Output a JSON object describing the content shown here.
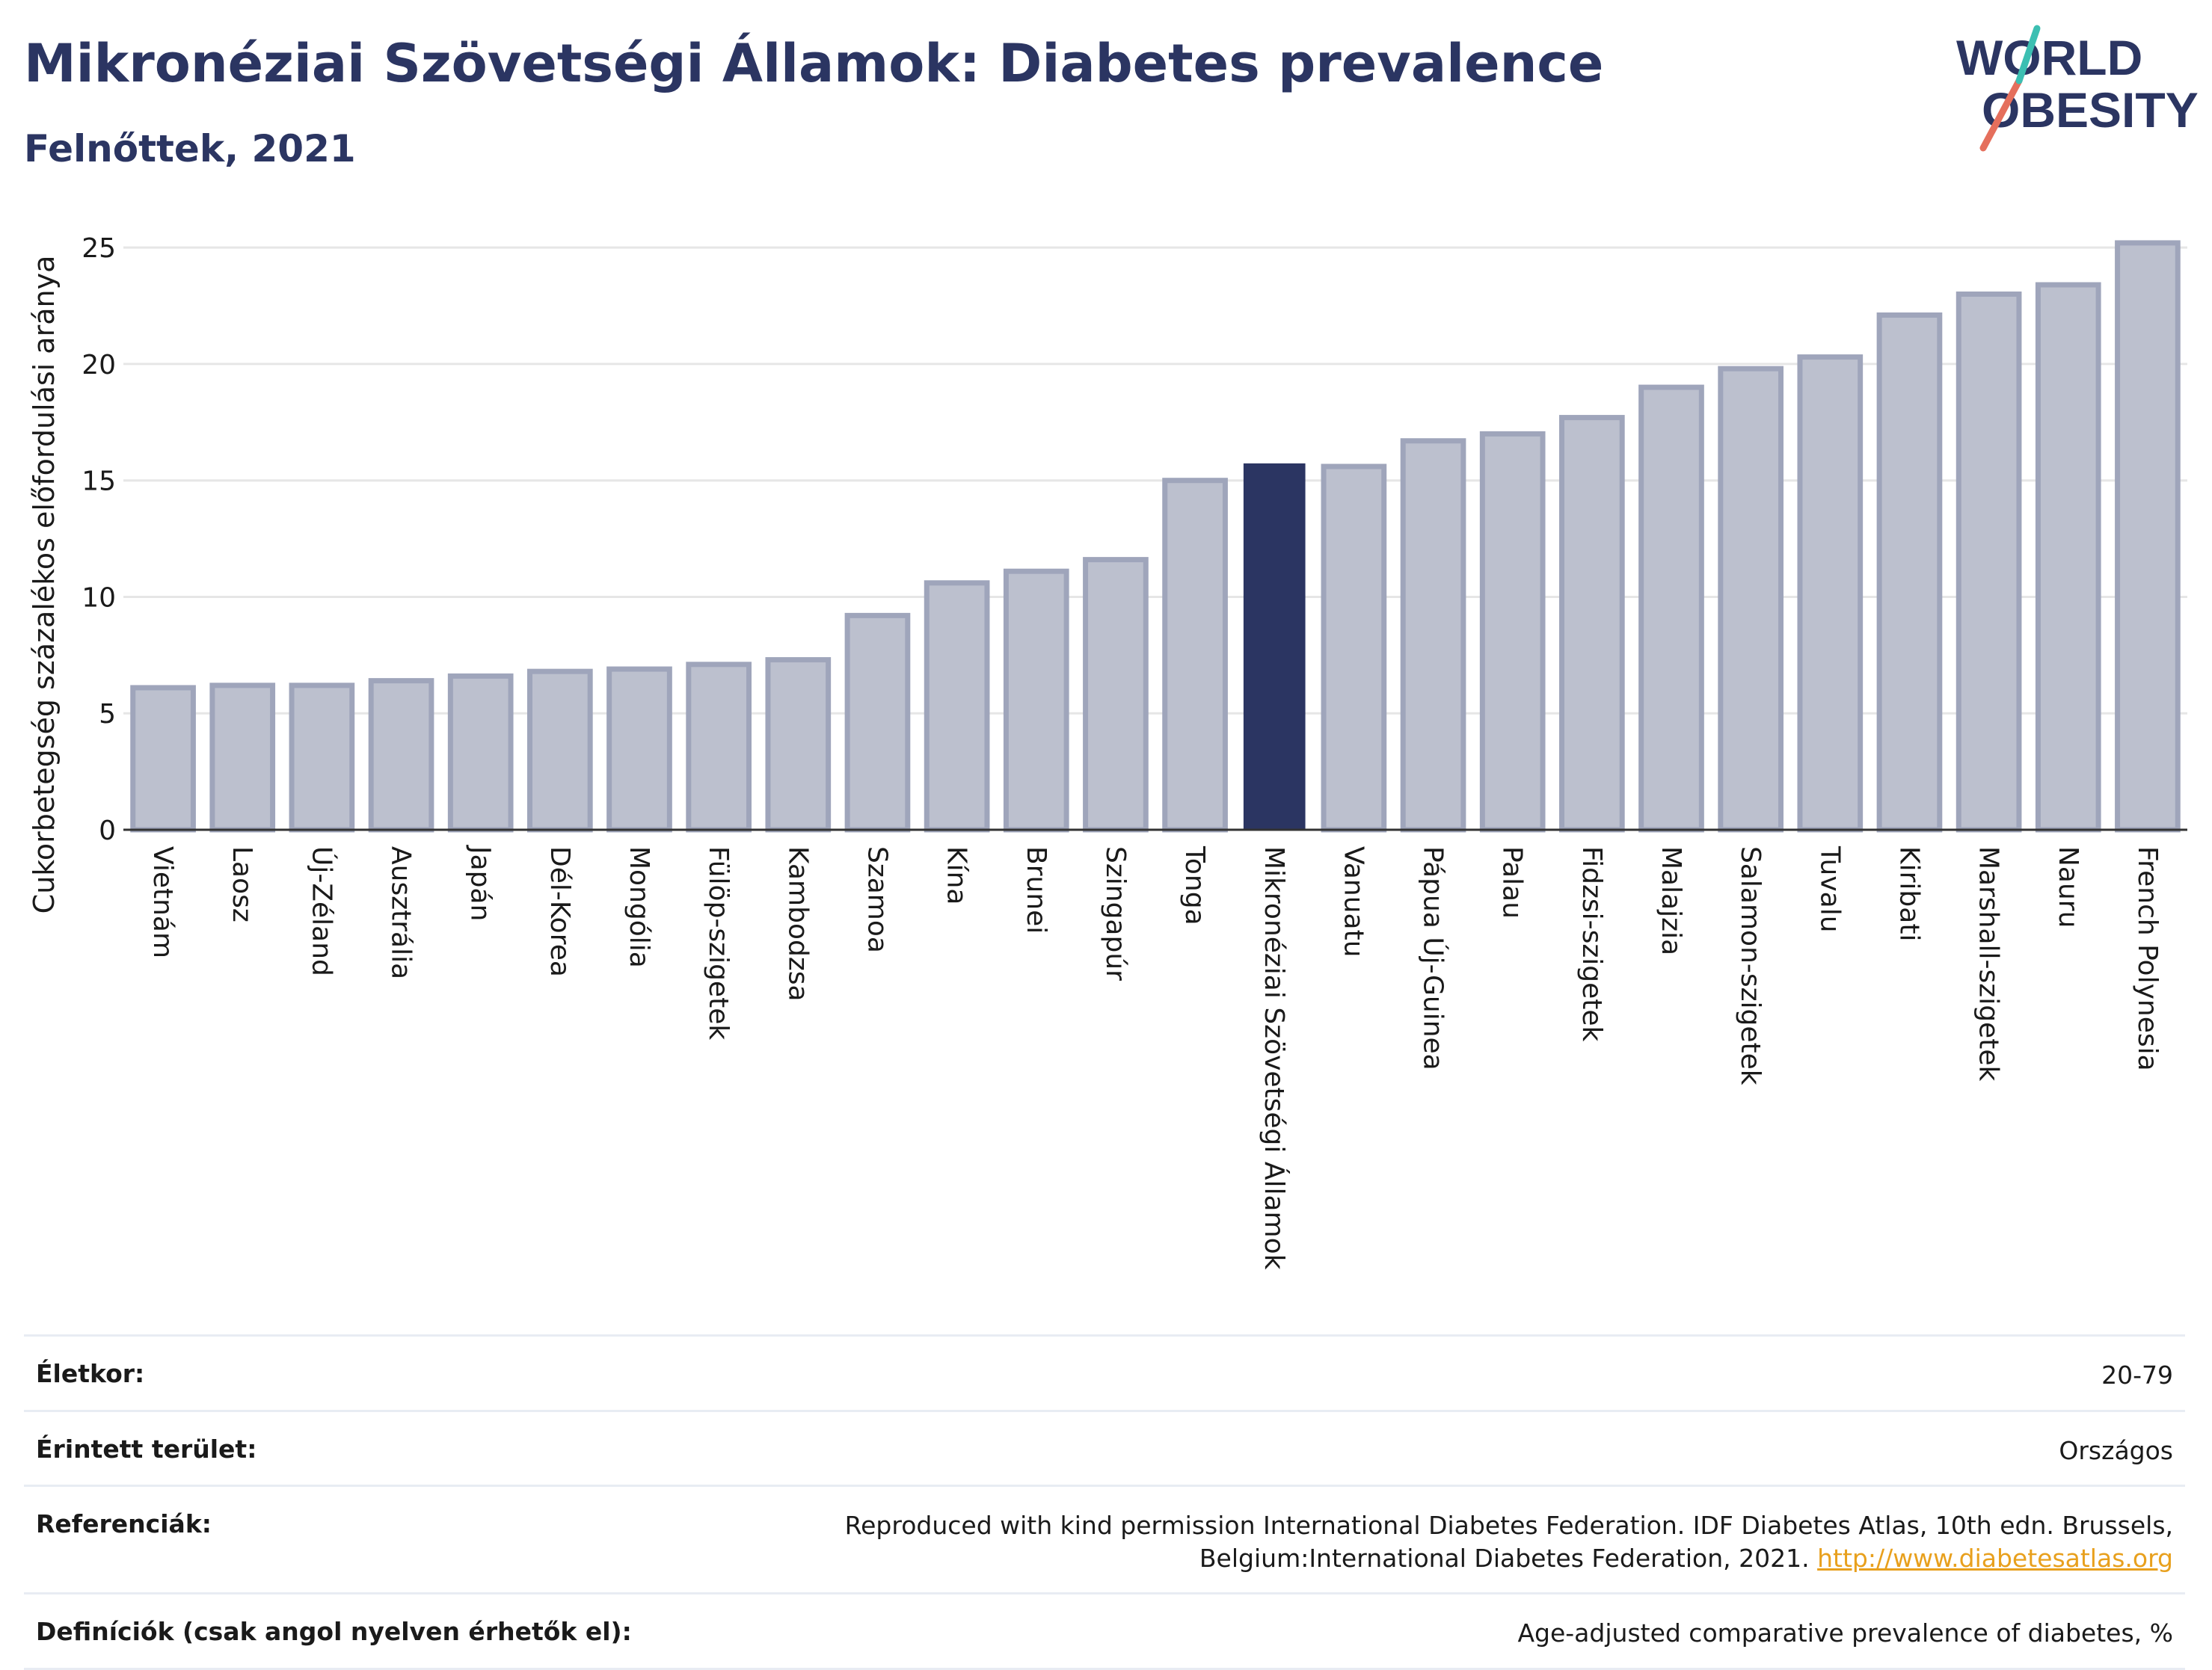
{
  "header": {
    "title": "Mikronéziai Szövetségi Államok: Diabetes prevalence",
    "subtitle": "Felnőttek, 2021"
  },
  "logo": {
    "line1": "WORLD",
    "line2": "OBESITY"
  },
  "chart_data": {
    "type": "bar",
    "ylabel": "Cukorbetegség százalékos előfordulási aránya",
    "ylim": [
      0,
      26
    ],
    "yticks": [
      0,
      5,
      10,
      15,
      20,
      25
    ],
    "grid": true,
    "highlight_category": "Mikronéziai Szövetségi Államok",
    "colors": {
      "bar": "#bcc0ce",
      "bar_border": "#9fa5bb",
      "highlight": "#2b3562",
      "grid": "#e6e6e6",
      "axis": "#333333"
    },
    "categories": [
      "Vietnám",
      "Laosz",
      "Új-Zéland",
      "Ausztrália",
      "Japán",
      "Dél-Korea",
      "Mongólia",
      "Fülöp-szigetek",
      "Kambodzsa",
      "Szamoa",
      "Kína",
      "Brunei",
      "Szingapúr",
      "Tonga",
      "Mikronéziai Szövetségi Államok",
      "Vanuatu",
      "Pápua Új-Guinea",
      "Palau",
      "Fidzsi-szigetek",
      "Malajzia",
      "Salamon-szigetek",
      "Tuvalu",
      "Kiribati",
      "Marshall-szigetek",
      "Nauru",
      "French Polynesia"
    ],
    "values": [
      6.1,
      6.2,
      6.2,
      6.4,
      6.6,
      6.8,
      6.9,
      7.1,
      7.3,
      9.2,
      10.6,
      11.1,
      11.6,
      15.0,
      15.7,
      15.6,
      16.7,
      17.0,
      17.7,
      19.0,
      19.8,
      20.3,
      22.1,
      23.0,
      23.4,
      25.2
    ]
  },
  "info": {
    "rows": [
      {
        "label": "Életkor:",
        "value": "20-79"
      },
      {
        "label": "Érintett terület:",
        "value": "Országos"
      },
      {
        "label": "Referenciák:",
        "value": "Reproduced with kind permission International Diabetes Federation.  IDF Diabetes Atlas, 10th edn. Brussels, Belgium:International Diabetes Federation, 2021.",
        "link": "http://www.diabetesatlas.org"
      },
      {
        "label": "Definíciók (csak angol nyelven érhetők el):",
        "value": "Age-adjusted comparative prevalence of diabetes, %"
      }
    ]
  }
}
